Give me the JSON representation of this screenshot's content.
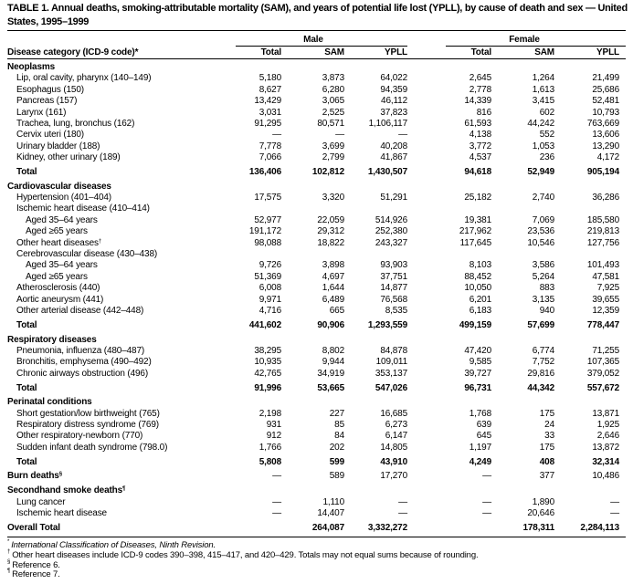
{
  "title": "TABLE 1. Annual deaths, smoking-attributable mortality (SAM), and years of potential life lost (YPLL), by cause of death and sex — United States, 1995–1999",
  "header": {
    "category_label": "Disease category (ICD-9 code)",
    "category_sup": "*",
    "groups": [
      "Male",
      "Female"
    ],
    "columns": [
      "Total",
      "SAM",
      "YPLL",
      "Total",
      "SAM",
      "YPLL"
    ]
  },
  "rows": [
    {
      "type": "section",
      "label": "Neoplasms"
    },
    {
      "type": "item",
      "label": "Lip, oral cavity, pharynx (140–149)",
      "v": [
        "5,180",
        "3,873",
        "64,022",
        "2,645",
        "1,264",
        "21,499"
      ]
    },
    {
      "type": "item",
      "label": "Esophagus (150)",
      "v": [
        "8,627",
        "6,280",
        "94,359",
        "2,778",
        "1,613",
        "25,686"
      ]
    },
    {
      "type": "item",
      "label": "Pancreas (157)",
      "v": [
        "13,429",
        "3,065",
        "46,112",
        "14,339",
        "3,415",
        "52,481"
      ]
    },
    {
      "type": "item",
      "label": "Larynx (161)",
      "v": [
        "3,031",
        "2,525",
        "37,823",
        "816",
        "602",
        "10,793"
      ]
    },
    {
      "type": "item",
      "label": "Trachea, lung, bronchus (162)",
      "v": [
        "91,295",
        "80,571",
        "1,106,117",
        "61,593",
        "44,242",
        "763,669"
      ]
    },
    {
      "type": "item",
      "label": "Cervix uteri (180)",
      "v": [
        "—",
        "—",
        "—",
        "4,138",
        "552",
        "13,606"
      ]
    },
    {
      "type": "item",
      "label": "Urinary bladder (188)",
      "v": [
        "7,778",
        "3,699",
        "40,208",
        "3,772",
        "1,053",
        "13,290"
      ]
    },
    {
      "type": "item",
      "label": "Kidney, other urinary (189)",
      "v": [
        "7,066",
        "2,799",
        "41,867",
        "4,537",
        "236",
        "4,172"
      ]
    },
    {
      "type": "total",
      "label": "Total",
      "v": [
        "136,406",
        "102,812",
        "1,430,507",
        "94,618",
        "52,949",
        "905,194"
      ]
    },
    {
      "type": "section",
      "label": "Cardiovascular diseases"
    },
    {
      "type": "item",
      "label": "Hypertension (401–404)",
      "v": [
        "17,575",
        "3,320",
        "51,291",
        "25,182",
        "2,740",
        "36,286"
      ]
    },
    {
      "type": "item",
      "label": "Ischemic heart disease (410–414)"
    },
    {
      "type": "sub",
      "label": "Aged 35–64 years",
      "v": [
        "52,977",
        "22,059",
        "514,926",
        "19,381",
        "7,069",
        "185,580"
      ]
    },
    {
      "type": "sub",
      "label": "Aged ≥65 years",
      "v": [
        "191,172",
        "29,312",
        "252,380",
        "217,962",
        "23,536",
        "219,813"
      ]
    },
    {
      "type": "item",
      "label": "Other heart diseases",
      "sup": "†",
      "v": [
        "98,088",
        "18,822",
        "243,327",
        "117,645",
        "10,546",
        "127,756"
      ]
    },
    {
      "type": "item",
      "label": "Cerebrovascular disease (430–438)"
    },
    {
      "type": "sub",
      "label": "Aged 35–64 years",
      "v": [
        "9,726",
        "3,898",
        "93,903",
        "8,103",
        "3,586",
        "101,493"
      ]
    },
    {
      "type": "sub",
      "label": "Aged ≥65 years",
      "v": [
        "51,369",
        "4,697",
        "37,751",
        "88,452",
        "5,264",
        "47,581"
      ]
    },
    {
      "type": "item",
      "label": "Atherosclerosis (440)",
      "v": [
        "6,008",
        "1,644",
        "14,877",
        "10,050",
        "883",
        "7,925"
      ]
    },
    {
      "type": "item",
      "label": "Aortic aneurysm (441)",
      "v": [
        "9,971",
        "6,489",
        "76,568",
        "6,201",
        "3,135",
        "39,655"
      ]
    },
    {
      "type": "item",
      "label": "Other arterial disease (442–448)",
      "v": [
        "4,716",
        "665",
        "8,535",
        "6,183",
        "940",
        "12,359"
      ]
    },
    {
      "type": "total",
      "label": "Total",
      "v": [
        "441,602",
        "90,906",
        "1,293,559",
        "499,159",
        "57,699",
        "778,447"
      ]
    },
    {
      "type": "section",
      "label": "Respiratory diseases"
    },
    {
      "type": "item",
      "label": "Pneumonia, influenza (480–487)",
      "v": [
        "38,295",
        "8,802",
        "84,878",
        "47,420",
        "6,774",
        "71,255"
      ]
    },
    {
      "type": "item",
      "label": "Bronchitis, emphysema (490–492)",
      "v": [
        "10,935",
        "9,944",
        "109,011",
        "9,585",
        "7,752",
        "107,365"
      ]
    },
    {
      "type": "item",
      "label": "Chronic airways obstruction (496)",
      "v": [
        "42,765",
        "34,919",
        "353,137",
        "39,727",
        "29,816",
        "379,052"
      ]
    },
    {
      "type": "total",
      "label": "Total",
      "v": [
        "91,996",
        "53,665",
        "547,026",
        "96,731",
        "44,342",
        "557,672"
      ]
    },
    {
      "type": "section",
      "label": "Perinatal conditions"
    },
    {
      "type": "item",
      "label": "Short gestation/low birthweight (765)",
      "v": [
        "2,198",
        "227",
        "16,685",
        "1,768",
        "175",
        "13,871"
      ]
    },
    {
      "type": "item",
      "label": "Respiratory distress syndrome (769)",
      "v": [
        "931",
        "85",
        "6,273",
        "639",
        "24",
        "1,925"
      ]
    },
    {
      "type": "item",
      "label": "Other respiratory-newborn (770)",
      "v": [
        "912",
        "84",
        "6,147",
        "645",
        "33",
        "2,646"
      ]
    },
    {
      "type": "item",
      "label": "Sudden infant death syndrome (798.0)",
      "v": [
        "1,766",
        "202",
        "14,805",
        "1,197",
        "175",
        "13,872"
      ]
    },
    {
      "type": "total",
      "label": "Total",
      "v": [
        "5,808",
        "599",
        "43,910",
        "4,249",
        "408",
        "32,314"
      ]
    },
    {
      "type": "top",
      "label": "Burn deaths",
      "sup": "§",
      "v": [
        "—",
        "589",
        "17,270",
        "—",
        "377",
        "10,486"
      ]
    },
    {
      "type": "section",
      "label": "Secondhand smoke deaths",
      "sup": "¶"
    },
    {
      "type": "item",
      "label": "Lung cancer",
      "v": [
        "—",
        "1,110",
        "—",
        "—",
        "1,890",
        "—"
      ]
    },
    {
      "type": "item",
      "label": "Ischemic heart disease",
      "v": [
        "—",
        "14,407",
        "—",
        "—",
        "20,646",
        "—"
      ]
    },
    {
      "type": "overall",
      "label": "Overall Total",
      "v": [
        "",
        "264,087",
        "3,332,272",
        "",
        "178,311",
        "2,284,113"
      ]
    }
  ],
  "footnotes": [
    {
      "mark": "*",
      "text": "International Classification of Diseases, Ninth Revision.",
      "italic": true
    },
    {
      "mark": "†",
      "text": "Other heart diseases include ICD-9 codes 390–398, 415–417, and 420–429. Totals may not equal sums because of rounding."
    },
    {
      "mark": "§",
      "text": "Reference 6."
    },
    {
      "mark": "¶",
      "text": "Reference 7."
    }
  ]
}
